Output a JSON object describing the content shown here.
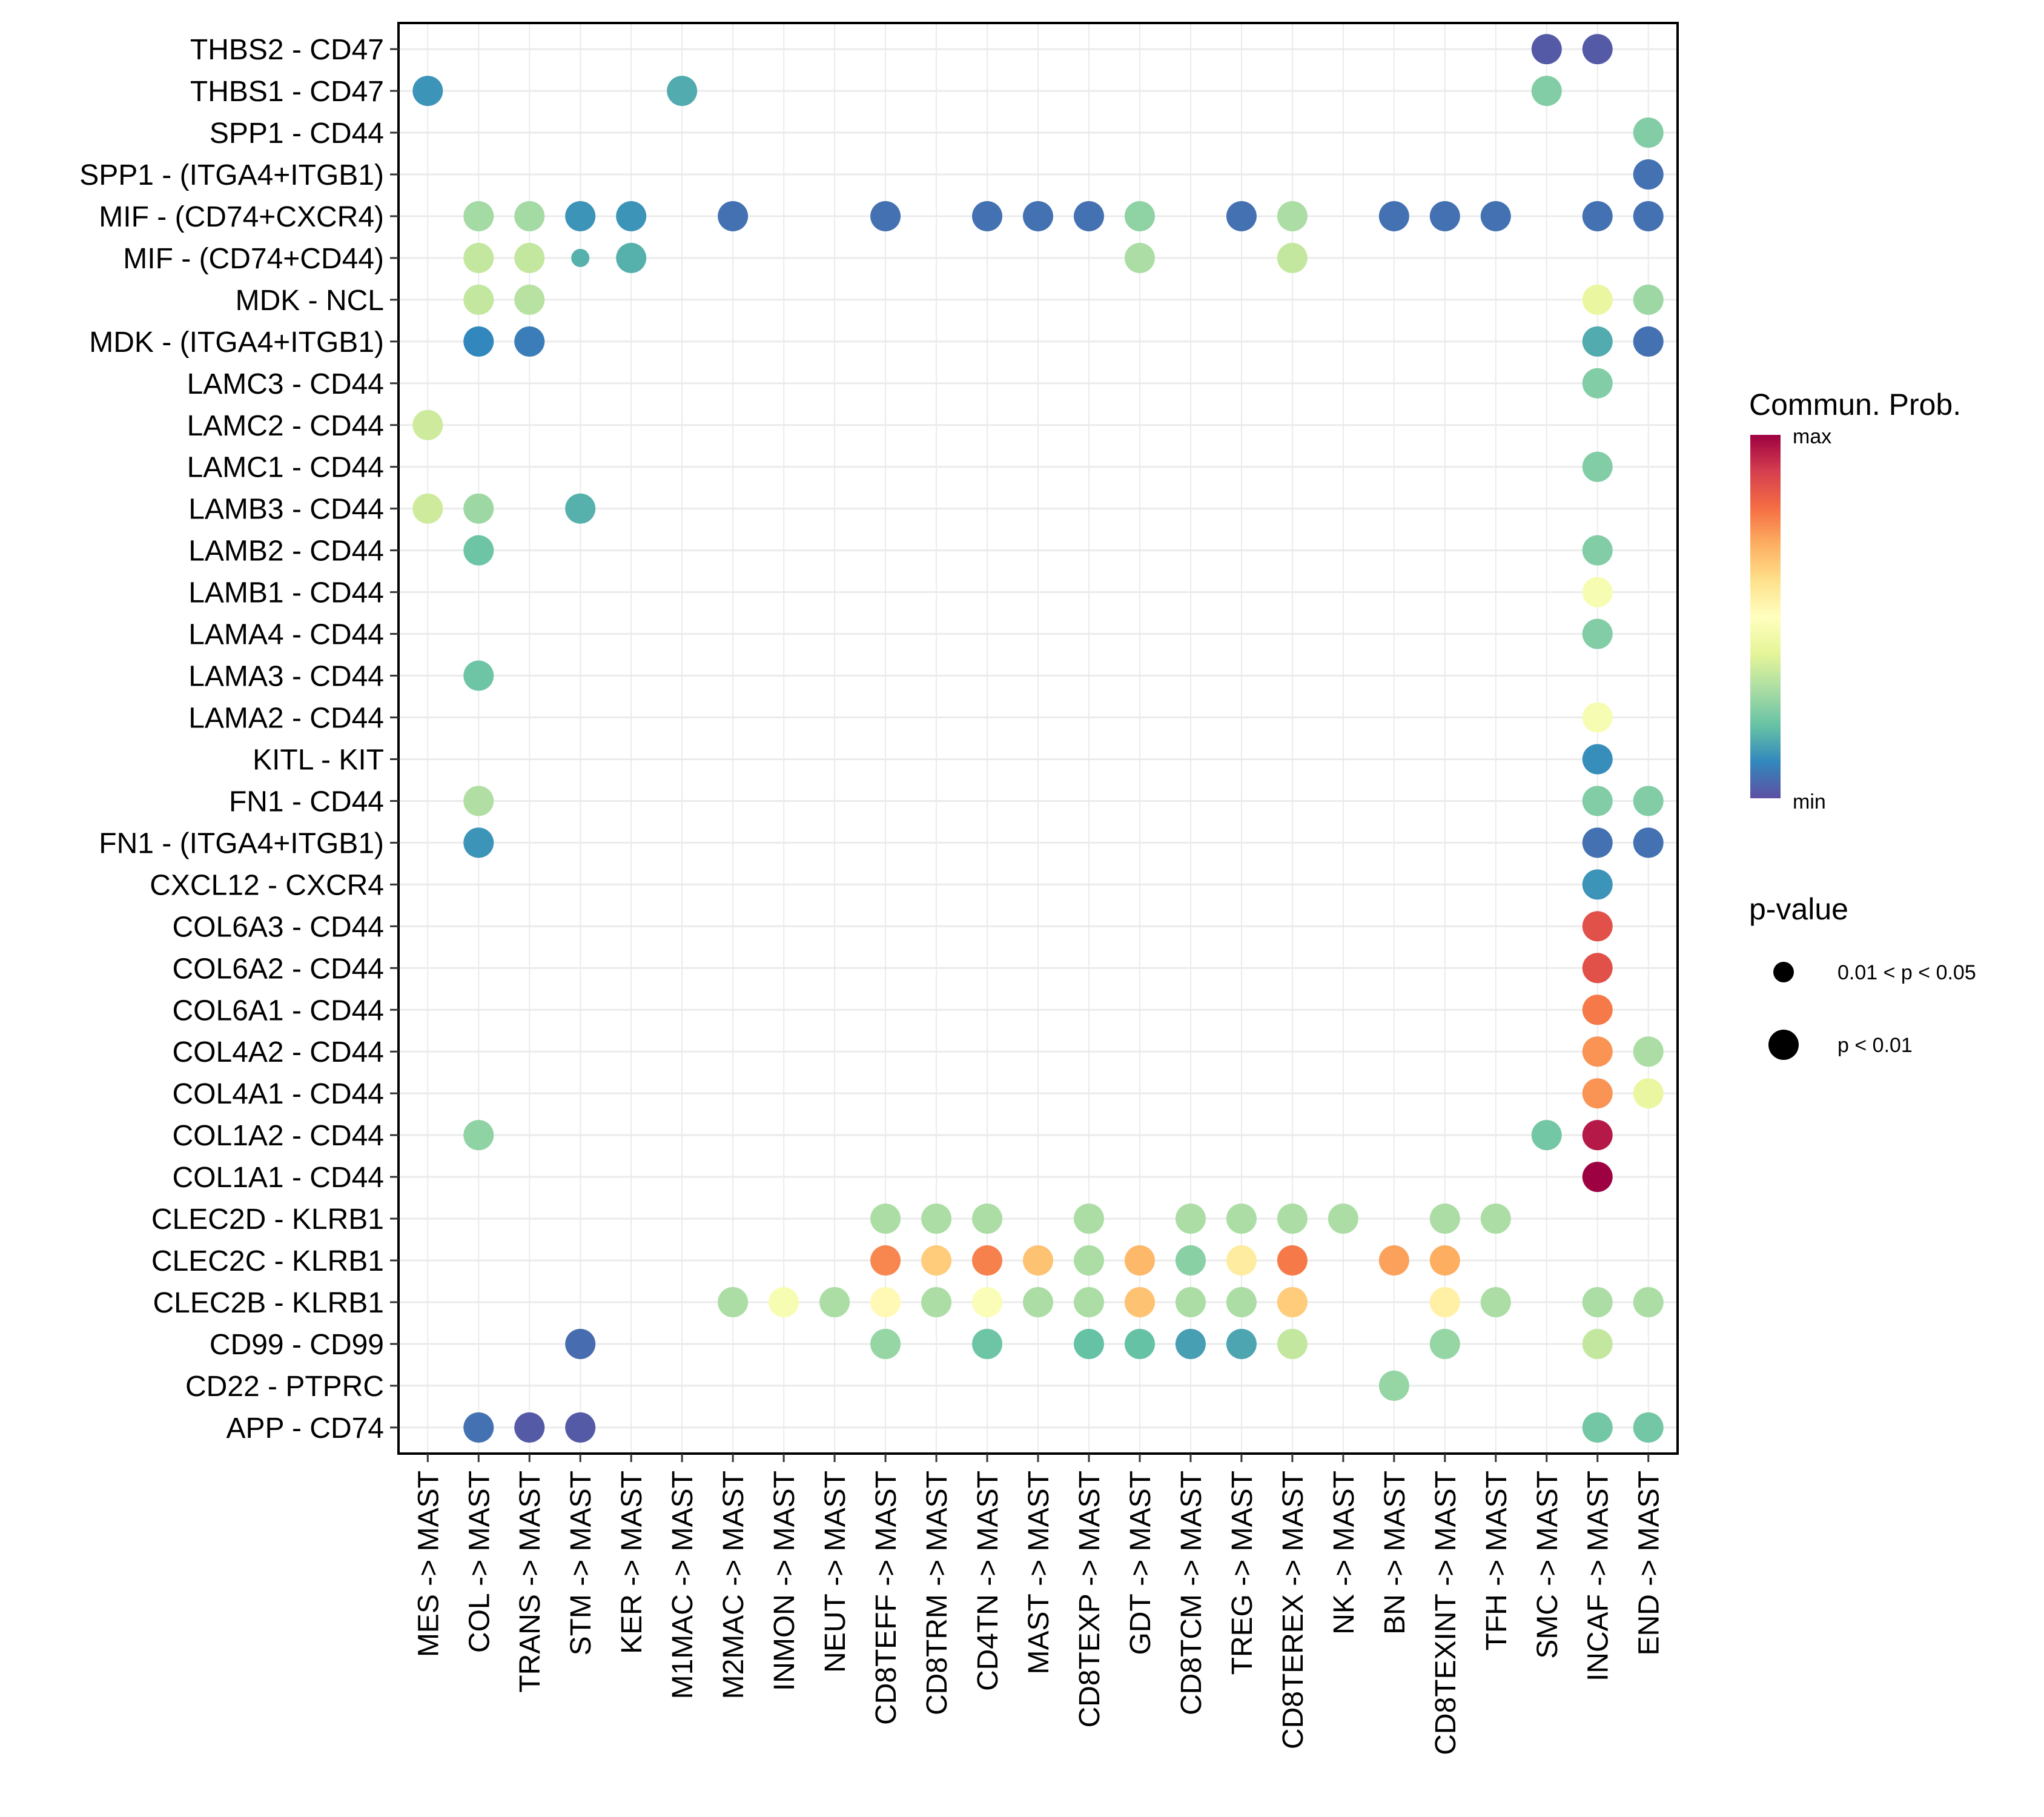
{
  "chart_data": {
    "type": "scatter",
    "subtype": "bubble-heatmap",
    "title": "",
    "xlabel": "",
    "ylabel": "",
    "grid": true,
    "x_categories": [
      "MES -> MAST",
      "COL -> MAST",
      "TRANS -> MAST",
      "STM -> MAST",
      "KER -> MAST",
      "M1MAC -> MAST",
      "M2MAC -> MAST",
      "INMON -> MAST",
      "NEUT -> MAST",
      "CD8TEFF -> MAST",
      "CD8TRM -> MAST",
      "CD4TN -> MAST",
      "MAST -> MAST",
      "CD8TEXP -> MAST",
      "GDT -> MAST",
      "CD8TCM -> MAST",
      "TREG -> MAST",
      "CD8TEREX -> MAST",
      "NK -> MAST",
      "BN -> MAST",
      "CD8TEXINT -> MAST",
      "TFH -> MAST",
      "SMC -> MAST",
      "INCAF -> MAST",
      "END -> MAST"
    ],
    "y_categories": [
      "THBS2 - CD47",
      "THBS1 - CD47",
      "SPP1 - CD44",
      "SPP1 - (ITGA4+ITGB1)",
      "MIF - (CD74+CXCR4)",
      "MIF - (CD74+CD44)",
      "MDK - NCL",
      "MDK - (ITGA4+ITGB1)",
      "LAMC3 - CD44",
      "LAMC2 - CD44",
      "LAMC1 - CD44",
      "LAMB3 - CD44",
      "LAMB2 - CD44",
      "LAMB1 - CD44",
      "LAMA4 - CD44",
      "LAMA3 - CD44",
      "LAMA2 - CD44",
      "KITL - KIT",
      "FN1 - CD44",
      "FN1 - (ITGA4+ITGB1)",
      "CXCL12 - CXCR4",
      "COL6A3 - CD44",
      "COL6A2 - CD44",
      "COL6A1 - CD44",
      "COL4A2 - CD44",
      "COL4A1 - CD44",
      "COL1A2 - CD44",
      "COL1A1 - CD44",
      "CLEC2D - KLRB1",
      "CLEC2C - KLRB1",
      "CLEC2B - KLRB1",
      "CD99 - CD99",
      "CD22 - PTPRC",
      "APP - CD74"
    ],
    "value_scale": "normalized 0 (min) to 1 (max) communication probability",
    "points": [
      {
        "y": "THBS2 - CD47",
        "x": "SMC -> MAST",
        "value": 0.02,
        "p": "p < 0.01"
      },
      {
        "y": "THBS2 - CD47",
        "x": "INCAF -> MAST",
        "value": 0.02,
        "p": "p < 0.01"
      },
      {
        "y": "THBS1 - CD47",
        "x": "MES -> MAST",
        "value": 0.12,
        "p": "p < 0.01"
      },
      {
        "y": "THBS1 - CD47",
        "x": "M1MAC -> MAST",
        "value": 0.16,
        "p": "p < 0.01"
      },
      {
        "y": "THBS1 - CD47",
        "x": "SMC -> MAST",
        "value": 0.24,
        "p": "p < 0.01"
      },
      {
        "y": "SPP1 - CD44",
        "x": "END -> MAST",
        "value": 0.24,
        "p": "p < 0.01"
      },
      {
        "y": "SPP1 - (ITGA4+ITGB1)",
        "x": "END -> MAST",
        "value": 0.06,
        "p": "p < 0.01"
      },
      {
        "y": "MIF - (CD74+CXCR4)",
        "x": "COL -> MAST",
        "value": 0.29,
        "p": "p < 0.01"
      },
      {
        "y": "MIF - (CD74+CXCR4)",
        "x": "TRANS -> MAST",
        "value": 0.29,
        "p": "p < 0.01"
      },
      {
        "y": "MIF - (CD74+CXCR4)",
        "x": "STM -> MAST",
        "value": 0.12,
        "p": "p < 0.01"
      },
      {
        "y": "MIF - (CD74+CXCR4)",
        "x": "KER -> MAST",
        "value": 0.12,
        "p": "p < 0.01"
      },
      {
        "y": "MIF - (CD74+CXCR4)",
        "x": "M2MAC -> MAST",
        "value": 0.06,
        "p": "p < 0.01"
      },
      {
        "y": "MIF - (CD74+CXCR4)",
        "x": "CD8TEFF -> MAST",
        "value": 0.06,
        "p": "p < 0.01"
      },
      {
        "y": "MIF - (CD74+CXCR4)",
        "x": "CD4TN -> MAST",
        "value": 0.06,
        "p": "p < 0.01"
      },
      {
        "y": "MIF - (CD74+CXCR4)",
        "x": "MAST -> MAST",
        "value": 0.06,
        "p": "p < 0.01"
      },
      {
        "y": "MIF - (CD74+CXCR4)",
        "x": "CD8TEXP -> MAST",
        "value": 0.06,
        "p": "p < 0.01"
      },
      {
        "y": "MIF - (CD74+CXCR4)",
        "x": "GDT -> MAST",
        "value": 0.26,
        "p": "p < 0.01"
      },
      {
        "y": "MIF - (CD74+CXCR4)",
        "x": "TREG -> MAST",
        "value": 0.06,
        "p": "p < 0.01"
      },
      {
        "y": "MIF - (CD74+CXCR4)",
        "x": "CD8TEREX -> MAST",
        "value": 0.3,
        "p": "p < 0.01"
      },
      {
        "y": "MIF - (CD74+CXCR4)",
        "x": "BN -> MAST",
        "value": 0.06,
        "p": "p < 0.01"
      },
      {
        "y": "MIF - (CD74+CXCR4)",
        "x": "CD8TEXINT -> MAST",
        "value": 0.06,
        "p": "p < 0.01"
      },
      {
        "y": "MIF - (CD74+CXCR4)",
        "x": "TFH -> MAST",
        "value": 0.06,
        "p": "p < 0.01"
      },
      {
        "y": "MIF - (CD74+CXCR4)",
        "x": "INCAF -> MAST",
        "value": 0.06,
        "p": "p < 0.01"
      },
      {
        "y": "MIF - (CD74+CXCR4)",
        "x": "END -> MAST",
        "value": 0.06,
        "p": "p < 0.01"
      },
      {
        "y": "MIF - (CD74+CD44)",
        "x": "COL -> MAST",
        "value": 0.34,
        "p": "p < 0.01"
      },
      {
        "y": "MIF - (CD74+CD44)",
        "x": "TRANS -> MAST",
        "value": 0.34,
        "p": "p < 0.01"
      },
      {
        "y": "MIF - (CD74+CD44)",
        "x": "STM -> MAST",
        "value": 0.17,
        "p": "0.01 < p < 0.05"
      },
      {
        "y": "MIF - (CD74+CD44)",
        "x": "KER -> MAST",
        "value": 0.17,
        "p": "p < 0.01"
      },
      {
        "y": "MIF - (CD74+CD44)",
        "x": "GDT -> MAST",
        "value": 0.3,
        "p": "p < 0.01"
      },
      {
        "y": "MIF - (CD74+CD44)",
        "x": "CD8TEREX -> MAST",
        "value": 0.34,
        "p": "p < 0.01"
      },
      {
        "y": "MDK - NCL",
        "x": "COL -> MAST",
        "value": 0.34,
        "p": "p < 0.01"
      },
      {
        "y": "MDK - NCL",
        "x": "TRANS -> MAST",
        "value": 0.32,
        "p": "p < 0.01"
      },
      {
        "y": "MDK - NCL",
        "x": "INCAF -> MAST",
        "value": 0.42,
        "p": "p < 0.01"
      },
      {
        "y": "MDK - NCL",
        "x": "END -> MAST",
        "value": 0.28,
        "p": "p < 0.01"
      },
      {
        "y": "MDK - (ITGA4+ITGB1)",
        "x": "COL -> MAST",
        "value": 0.1,
        "p": "p < 0.01"
      },
      {
        "y": "MDK - (ITGA4+ITGB1)",
        "x": "TRANS -> MAST",
        "value": 0.08,
        "p": "p < 0.01"
      },
      {
        "y": "MDK - (ITGA4+ITGB1)",
        "x": "INCAF -> MAST",
        "value": 0.16,
        "p": "p < 0.01"
      },
      {
        "y": "MDK - (ITGA4+ITGB1)",
        "x": "END -> MAST",
        "value": 0.06,
        "p": "p < 0.01"
      },
      {
        "y": "LAMC3 - CD44",
        "x": "INCAF -> MAST",
        "value": 0.24,
        "p": "p < 0.01"
      },
      {
        "y": "LAMC2 - CD44",
        "x": "MES -> MAST",
        "value": 0.36,
        "p": "p < 0.01"
      },
      {
        "y": "LAMC1 - CD44",
        "x": "INCAF -> MAST",
        "value": 0.24,
        "p": "p < 0.01"
      },
      {
        "y": "LAMB3 - CD44",
        "x": "MES -> MAST",
        "value": 0.36,
        "p": "p < 0.01"
      },
      {
        "y": "LAMB3 - CD44",
        "x": "COL -> MAST",
        "value": 0.28,
        "p": "p < 0.01"
      },
      {
        "y": "LAMB3 - CD44",
        "x": "STM -> MAST",
        "value": 0.17,
        "p": "p < 0.01"
      },
      {
        "y": "LAMB2 - CD44",
        "x": "COL -> MAST",
        "value": 0.21,
        "p": "p < 0.01"
      },
      {
        "y": "LAMB2 - CD44",
        "x": "INCAF -> MAST",
        "value": 0.24,
        "p": "p < 0.01"
      },
      {
        "y": "LAMB1 - CD44",
        "x": "INCAF -> MAST",
        "value": 0.47,
        "p": "p < 0.01"
      },
      {
        "y": "LAMA4 - CD44",
        "x": "INCAF -> MAST",
        "value": 0.24,
        "p": "p < 0.01"
      },
      {
        "y": "LAMA3 - CD44",
        "x": "COL -> MAST",
        "value": 0.21,
        "p": "p < 0.01"
      },
      {
        "y": "LAMA2 - CD44",
        "x": "INCAF -> MAST",
        "value": 0.47,
        "p": "p < 0.01"
      },
      {
        "y": "KITL - KIT",
        "x": "INCAF -> MAST",
        "value": 0.11,
        "p": "p < 0.01"
      },
      {
        "y": "FN1 - CD44",
        "x": "COL -> MAST",
        "value": 0.31,
        "p": "p < 0.01"
      },
      {
        "y": "FN1 - CD44",
        "x": "INCAF -> MAST",
        "value": 0.24,
        "p": "p < 0.01"
      },
      {
        "y": "FN1 - CD44",
        "x": "END -> MAST",
        "value": 0.24,
        "p": "p < 0.01"
      },
      {
        "y": "FN1 - (ITGA4+ITGB1)",
        "x": "COL -> MAST",
        "value": 0.12,
        "p": "p < 0.01"
      },
      {
        "y": "FN1 - (ITGA4+ITGB1)",
        "x": "INCAF -> MAST",
        "value": 0.06,
        "p": "p < 0.01"
      },
      {
        "y": "FN1 - (ITGA4+ITGB1)",
        "x": "END -> MAST",
        "value": 0.06,
        "p": "p < 0.01"
      },
      {
        "y": "CXCL12 - CXCR4",
        "x": "INCAF -> MAST",
        "value": 0.12,
        "p": "p < 0.01"
      },
      {
        "y": "COL6A3 - CD44",
        "x": "INCAF -> MAST",
        "value": 0.86,
        "p": "p < 0.01"
      },
      {
        "y": "COL6A2 - CD44",
        "x": "INCAF -> MAST",
        "value": 0.86,
        "p": "p < 0.01"
      },
      {
        "y": "COL6A1 - CD44",
        "x": "INCAF -> MAST",
        "value": 0.78,
        "p": "p < 0.01"
      },
      {
        "y": "COL4A2 - CD44",
        "x": "INCAF -> MAST",
        "value": 0.74,
        "p": "p < 0.01"
      },
      {
        "y": "COL4A2 - CD44",
        "x": "END -> MAST",
        "value": 0.3,
        "p": "p < 0.01"
      },
      {
        "y": "COL4A1 - CD44",
        "x": "INCAF -> MAST",
        "value": 0.74,
        "p": "p < 0.01"
      },
      {
        "y": "COL4A1 - CD44",
        "x": "END -> MAST",
        "value": 0.42,
        "p": "p < 0.01"
      },
      {
        "y": "COL1A2 - CD44",
        "x": "COL -> MAST",
        "value": 0.26,
        "p": "p < 0.01"
      },
      {
        "y": "COL1A2 - CD44",
        "x": "SMC -> MAST",
        "value": 0.22,
        "p": "p < 0.01"
      },
      {
        "y": "COL1A2 - CD44",
        "x": "INCAF -> MAST",
        "value": 0.96,
        "p": "p < 0.01"
      },
      {
        "y": "COL1A1 - CD44",
        "x": "INCAF -> MAST",
        "value": 1.0,
        "p": "p < 0.01"
      },
      {
        "y": "CLEC2D - KLRB1",
        "x": "CD8TEFF -> MAST",
        "value": 0.3,
        "p": "p < 0.01"
      },
      {
        "y": "CLEC2D - KLRB1",
        "x": "CD8TRM -> MAST",
        "value": 0.3,
        "p": "p < 0.01"
      },
      {
        "y": "CLEC2D - KLRB1",
        "x": "CD4TN -> MAST",
        "value": 0.3,
        "p": "p < 0.01"
      },
      {
        "y": "CLEC2D - KLRB1",
        "x": "CD8TEXP -> MAST",
        "value": 0.3,
        "p": "p < 0.01"
      },
      {
        "y": "CLEC2D - KLRB1",
        "x": "CD8TCM -> MAST",
        "value": 0.3,
        "p": "p < 0.01"
      },
      {
        "y": "CLEC2D - KLRB1",
        "x": "TREG -> MAST",
        "value": 0.3,
        "p": "p < 0.01"
      },
      {
        "y": "CLEC2D - KLRB1",
        "x": "CD8TEREX -> MAST",
        "value": 0.3,
        "p": "p < 0.01"
      },
      {
        "y": "CLEC2D - KLRB1",
        "x": "NK -> MAST",
        "value": 0.3,
        "p": "p < 0.01"
      },
      {
        "y": "CLEC2D - KLRB1",
        "x": "CD8TEXINT -> MAST",
        "value": 0.3,
        "p": "p < 0.01"
      },
      {
        "y": "CLEC2D - KLRB1",
        "x": "TFH -> MAST",
        "value": 0.3,
        "p": "p < 0.01"
      },
      {
        "y": "CLEC2C - KLRB1",
        "x": "CD8TEFF -> MAST",
        "value": 0.76,
        "p": "p < 0.01"
      },
      {
        "y": "CLEC2C - KLRB1",
        "x": "CD8TRM -> MAST",
        "value": 0.64,
        "p": "p < 0.01"
      },
      {
        "y": "CLEC2C - KLRB1",
        "x": "CD4TN -> MAST",
        "value": 0.77,
        "p": "p < 0.01"
      },
      {
        "y": "CLEC2C - KLRB1",
        "x": "MAST -> MAST",
        "value": 0.66,
        "p": "p < 0.01"
      },
      {
        "y": "CLEC2C - KLRB1",
        "x": "CD8TEXP -> MAST",
        "value": 0.3,
        "p": "p < 0.01"
      },
      {
        "y": "CLEC2C - KLRB1",
        "x": "GDT -> MAST",
        "value": 0.68,
        "p": "p < 0.01"
      },
      {
        "y": "CLEC2C - KLRB1",
        "x": "CD8TCM -> MAST",
        "value": 0.25,
        "p": "p < 0.01"
      },
      {
        "y": "CLEC2C - KLRB1",
        "x": "TREG -> MAST",
        "value": 0.56,
        "p": "p < 0.01"
      },
      {
        "y": "CLEC2C - KLRB1",
        "x": "CD8TEREX -> MAST",
        "value": 0.78,
        "p": "p < 0.01"
      },
      {
        "y": "CLEC2C - KLRB1",
        "x": "BN -> MAST",
        "value": 0.72,
        "p": "p < 0.01"
      },
      {
        "y": "CLEC2C - KLRB1",
        "x": "CD8TEXINT -> MAST",
        "value": 0.7,
        "p": "p < 0.01"
      },
      {
        "y": "CLEC2B - KLRB1",
        "x": "M2MAC -> MAST",
        "value": 0.3,
        "p": "p < 0.01"
      },
      {
        "y": "CLEC2B - KLRB1",
        "x": "INMON -> MAST",
        "value": 0.47,
        "p": "p < 0.01"
      },
      {
        "y": "CLEC2B - KLRB1",
        "x": "NEUT -> MAST",
        "value": 0.3,
        "p": "p < 0.01"
      },
      {
        "y": "CLEC2B - KLRB1",
        "x": "CD8TEFF -> MAST",
        "value": 0.52,
        "p": "p < 0.01"
      },
      {
        "y": "CLEC2B - KLRB1",
        "x": "CD8TRM -> MAST",
        "value": 0.3,
        "p": "p < 0.01"
      },
      {
        "y": "CLEC2B - KLRB1",
        "x": "CD4TN -> MAST",
        "value": 0.48,
        "p": "p < 0.01"
      },
      {
        "y": "CLEC2B - KLRB1",
        "x": "MAST -> MAST",
        "value": 0.3,
        "p": "p < 0.01"
      },
      {
        "y": "CLEC2B - KLRB1",
        "x": "CD8TEXP -> MAST",
        "value": 0.3,
        "p": "p < 0.01"
      },
      {
        "y": "CLEC2B - KLRB1",
        "x": "GDT -> MAST",
        "value": 0.66,
        "p": "p < 0.01"
      },
      {
        "y": "CLEC2B - KLRB1",
        "x": "CD8TCM -> MAST",
        "value": 0.3,
        "p": "p < 0.01"
      },
      {
        "y": "CLEC2B - KLRB1",
        "x": "TREG -> MAST",
        "value": 0.3,
        "p": "p < 0.01"
      },
      {
        "y": "CLEC2B - KLRB1",
        "x": "CD8TEREX -> MAST",
        "value": 0.64,
        "p": "p < 0.01"
      },
      {
        "y": "CLEC2B - KLRB1",
        "x": "CD8TEXINT -> MAST",
        "value": 0.55,
        "p": "p < 0.01"
      },
      {
        "y": "CLEC2B - KLRB1",
        "x": "TFH -> MAST",
        "value": 0.3,
        "p": "p < 0.01"
      },
      {
        "y": "CLEC2B - KLRB1",
        "x": "INCAF -> MAST",
        "value": 0.3,
        "p": "p < 0.01"
      },
      {
        "y": "CLEC2B - KLRB1",
        "x": "END -> MAST",
        "value": 0.3,
        "p": "p < 0.01"
      },
      {
        "y": "CD99 - CD99",
        "x": "STM -> MAST",
        "value": 0.05,
        "p": "p < 0.01"
      },
      {
        "y": "CD99 - CD99",
        "x": "CD8TEFF -> MAST",
        "value": 0.27,
        "p": "p < 0.01"
      },
      {
        "y": "CD99 - CD99",
        "x": "CD4TN -> MAST",
        "value": 0.21,
        "p": "p < 0.01"
      },
      {
        "y": "CD99 - CD99",
        "x": "CD8TEXP -> MAST",
        "value": 0.2,
        "p": "p < 0.01"
      },
      {
        "y": "CD99 - CD99",
        "x": "GDT -> MAST",
        "value": 0.2,
        "p": "p < 0.01"
      },
      {
        "y": "CD99 - CD99",
        "x": "CD8TCM -> MAST",
        "value": 0.14,
        "p": "p < 0.01"
      },
      {
        "y": "CD99 - CD99",
        "x": "TREG -> MAST",
        "value": 0.15,
        "p": "p < 0.01"
      },
      {
        "y": "CD99 - CD99",
        "x": "CD8TEREX -> MAST",
        "value": 0.34,
        "p": "p < 0.01"
      },
      {
        "y": "CD99 - CD99",
        "x": "CD8TEXINT -> MAST",
        "value": 0.27,
        "p": "p < 0.01"
      },
      {
        "y": "CD99 - CD99",
        "x": "INCAF -> MAST",
        "value": 0.34,
        "p": "p < 0.01"
      },
      {
        "y": "CD22 - PTPRC",
        "x": "BN -> MAST",
        "value": 0.27,
        "p": "p < 0.01"
      },
      {
        "y": "APP - CD74",
        "x": "COL -> MAST",
        "value": 0.06,
        "p": "p < 0.01"
      },
      {
        "y": "APP - CD74",
        "x": "TRANS -> MAST",
        "value": 0.02,
        "p": "p < 0.01"
      },
      {
        "y": "APP - CD74",
        "x": "STM -> MAST",
        "value": 0.02,
        "p": "p < 0.01"
      },
      {
        "y": "APP - CD74",
        "x": "INCAF -> MAST",
        "value": 0.22,
        "p": "p < 0.01"
      },
      {
        "y": "APP - CD74",
        "x": "END -> MAST",
        "value": 0.22,
        "p": "p < 0.01"
      }
    ],
    "color_legend": {
      "title": "Commun. Prob.",
      "max_label": "max",
      "min_label": "min",
      "palette": [
        "#5E4FA2",
        "#3288BD",
        "#66C2A5",
        "#ABDDA4",
        "#E6F598",
        "#FFFFBF",
        "#FEE08B",
        "#FDAE61",
        "#F46D43",
        "#D53E4F",
        "#9E0142"
      ],
      "placement": "right"
    },
    "size_legend": {
      "title": "p-value",
      "items": [
        {
          "label": "0.01 < p < 0.05",
          "size": "small"
        },
        {
          "label": "p < 0.01",
          "size": "large"
        }
      ],
      "placement": "right"
    }
  }
}
